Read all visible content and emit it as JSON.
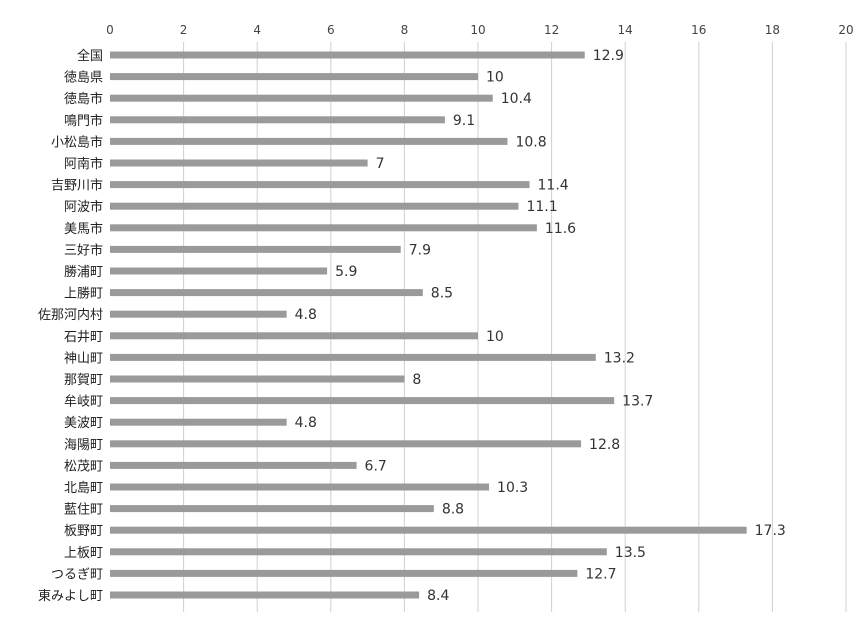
{
  "chart_data": {
    "type": "bar",
    "orientation": "horizontal",
    "title": "",
    "xlabel": "",
    "ylabel": "",
    "xlim": [
      0,
      20
    ],
    "x_ticks": [
      0,
      2,
      4,
      6,
      8,
      10,
      12,
      14,
      16,
      18,
      20
    ],
    "grid": true,
    "legend": "none",
    "bar_color": "#9a9a9a",
    "categories": [
      "全国",
      "徳島県",
      "徳島市",
      "鳴門市",
      "小松島市",
      "阿南市",
      "吉野川市",
      "阿波市",
      "美馬市",
      "三好市",
      "勝浦町",
      "上勝町",
      "佐那河内村",
      "石井町",
      "神山町",
      "那賀町",
      "牟岐町",
      "美波町",
      "海陽町",
      "松茂町",
      "北島町",
      "藍住町",
      "板野町",
      "上板町",
      "つるぎ町",
      "東みよし町"
    ],
    "values": [
      12.9,
      10,
      10.4,
      9.1,
      10.8,
      7,
      11.4,
      11.1,
      11.6,
      7.9,
      5.9,
      8.5,
      4.8,
      10,
      13.2,
      8,
      13.7,
      4.8,
      12.8,
      6.7,
      10.3,
      8.8,
      17.3,
      13.5,
      12.7,
      8.4
    ]
  }
}
